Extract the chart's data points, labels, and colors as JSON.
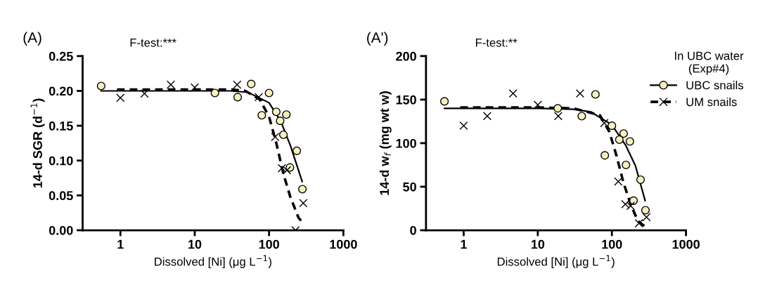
{
  "chart_data": [
    {
      "type": "scatter",
      "title": "F-test:***",
      "annotations": [
        "(A)"
      ],
      "xlabel": "Dissolved [Ni] (μg L$^{−1}$)",
      "ylabel": "14-d SGR (d$^{−1}$)",
      "log": "x",
      "grid": false,
      "xlim": [
        0.31,
        1000
      ],
      "xticks": [
        1,
        10,
        100,
        1000
      ],
      "ylim": [
        0,
        0.25
      ],
      "yticks": [
        {
          "value": 0,
          "label": "0.00"
        },
        {
          "value": 0.05,
          "label": "0.05"
        },
        {
          "value": 0.1,
          "label": "0.10"
        },
        {
          "value": 0.15,
          "label": "0.15"
        },
        {
          "value": 0.2,
          "label": "0.20"
        },
        {
          "value": 0.25,
          "label": "0.25"
        }
      ],
      "series": [
        {
          "type": "scatter",
          "marker": "circle",
          "color": "#f7f0c0",
          "x": [
            0.55,
            18.7,
            37.8,
            57.5,
            100,
            79.8,
            125,
            141,
            156,
            171,
            191,
            236,
            281
          ],
          "values": [
            0.207,
            0.197,
            0.191,
            0.21,
            0.197,
            0.165,
            0.17,
            0.157,
            0.137,
            0.166,
            0.09,
            0.114,
            0.059
          ]
        },
        {
          "type": "line",
          "line_style": "solid",
          "color": "#000000",
          "x": [
            0.55,
            10,
            30,
            51.8,
            100,
            144,
            193,
            279
          ],
          "values": [
            0.2,
            0.2,
            0.2,
            0.198,
            0.183,
            0.156,
            0.122,
            0.07
          ]
        },
        {
          "type": "scatter",
          "marker": "cross",
          "color": "#000000",
          "x": [
            1,
            2.11,
            4.77,
            10,
            37.2,
            72.6,
            121,
            149,
            174,
            289,
            227
          ],
          "values": [
            0.19,
            0.196,
            0.209,
            0.205,
            0.209,
            0.191,
            0.134,
            0.089,
            0.086,
            0.039,
            0
          ]
        },
        {
          "type": "line",
          "line_style": "dashed",
          "color": "#000000",
          "x": [
            0.9,
            10,
            30,
            48,
            74.6,
            100,
            124.6,
            155,
            193,
            249,
            289
          ],
          "values": [
            0.202,
            0.202,
            0.202,
            0.2,
            0.188,
            0.163,
            0.126,
            0.082,
            0.048,
            0.018,
            0.01
          ]
        }
      ]
    },
    {
      "type": "scatter",
      "title": "F-test:**",
      "annotations": [
        "(A')"
      ],
      "xlabel": "Dissolved [Ni] (μg L$^{−1}$)",
      "ylabel": "14-d w$_{f}$ (mg wt w)",
      "log": "x",
      "grid": false,
      "legend": "top right",
      "legend_title": "In UBC water\n(Exp#4)",
      "xlim": [
        0.31,
        1000
      ],
      "xticks": [
        1,
        10,
        100,
        1000
      ],
      "ylim": [
        0,
        200
      ],
      "yticks": [
        0,
        50,
        100,
        150,
        200
      ],
      "series": [
        {
          "type": "scatter",
          "marker": "circle",
          "color": "#f7f0c0",
          "x": [
            0.55,
            18.6,
            39.2,
            60,
            100,
            80.3,
            126,
            144,
            175,
            155,
            244,
            196,
            284
          ],
          "values": [
            148,
            140,
            131,
            156,
            120,
            86,
            104,
            111,
            102,
            75,
            58,
            34,
            23
          ]
        },
        {
          "name": "UBC snails",
          "type": "line",
          "line_style": "solid",
          "color": "#000000",
          "x": [
            0.55,
            10,
            30,
            51.8,
            100,
            155,
            208,
            281
          ],
          "values": [
            140,
            140,
            139,
            136,
            121,
            97,
            74,
            34
          ]
        },
        {
          "type": "scatter",
          "marker": "cross",
          "color": "#000000",
          "x": [
            1,
            2.08,
            4.64,
            10,
            18.9,
            37.2,
            79,
            122,
            152,
            179,
            232,
            293
          ],
          "values": [
            120,
            131,
            157,
            144,
            131,
            157,
            123,
            56,
            30,
            28,
            8,
            15
          ]
        },
        {
          "name": "UM snails",
          "type": "line",
          "line_style": "dashed",
          "color": "#000000",
          "x": [
            0.9,
            10,
            30,
            69,
            92.5,
            115,
            144,
            179,
            223,
            293
          ],
          "values": [
            141,
            141,
            140,
            132,
            113,
            86,
            54,
            30,
            11,
            3
          ]
        }
      ]
    }
  ]
}
